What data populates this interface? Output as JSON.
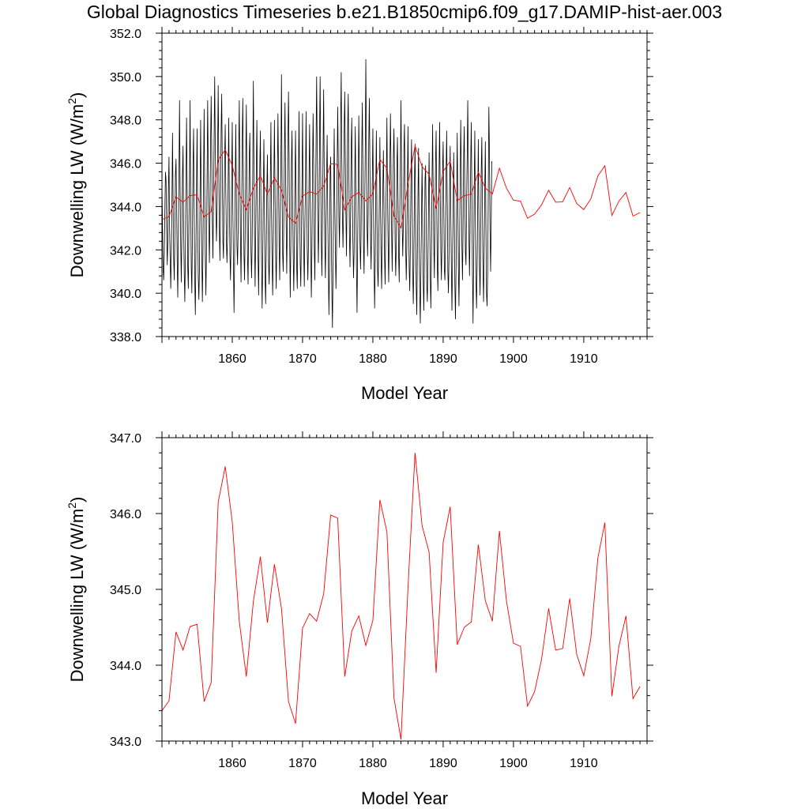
{
  "figure_title": "Global Diagnostics Timeseries b.e21.B1850cmip6.f09_g17.DAMIP-hist-aer.003",
  "chart_data": [
    {
      "type": "line",
      "title": "Global Diagnostics Timeseries b.e21.B1850cmip6.f09_g17.DAMIP-hist-aer.003",
      "xlabel": "Model Year",
      "ylabel": "Downwelling LW (W/m",
      "ylabel_sup": "2",
      "ylabel_close": ")",
      "xlim": [
        1850,
        1919
      ],
      "ylim": [
        338.0,
        352.0
      ],
      "x_ticks": [
        "1860",
        "1870",
        "1880",
        "1890",
        "1900",
        "1910"
      ],
      "x_tick_values": [
        1860,
        1870,
        1880,
        1890,
        1900,
        1910
      ],
      "y_ticks": [
        "338.0",
        "340.0",
        "342.0",
        "344.0",
        "346.0",
        "348.0",
        "350.0",
        "352.0"
      ],
      "y_tick_values": [
        338,
        340,
        342,
        344,
        346,
        348,
        350,
        352
      ],
      "series": [
        {
          "kind": "monthly",
          "color": "#000000",
          "x_start": 1850,
          "x_step": 0.08333,
          "values": [
            345.0,
            343.2,
            341.1,
            340.6,
            341.8,
            343.9,
            345.6,
            345.2,
            343.0,
            341.3,
            342.4,
            344.8,
            346.3,
            343.0,
            341.6,
            340.2,
            341.9,
            344.0,
            347.4,
            344.3,
            341.6,
            340.6,
            342.6,
            345.5,
            346.2,
            344.1,
            341.5,
            339.8,
            342.6,
            345.3,
            348.9,
            344.9,
            342.3,
            340.5,
            342.7,
            345.4,
            346.8,
            343.1,
            341.0,
            339.6,
            341.7,
            345.1,
            348.1,
            344.8,
            341.2,
            340.2,
            343.0,
            345.2,
            348.9,
            344.3,
            341.2,
            340.0,
            342.8,
            345.9,
            347.6,
            343.7,
            340.6,
            339.0,
            341.8,
            345.1,
            347.6,
            343.3,
            340.7,
            339.7,
            341.2,
            344.5,
            348.0,
            344.6,
            341.7,
            339.6,
            341.8,
            345.6,
            348.5,
            344.6,
            341.7,
            339.9,
            342.0,
            345.3,
            348.9,
            345.9,
            343.0,
            341.4,
            343.8,
            347.0,
            349.1,
            346.5,
            343.3,
            341.6,
            344.1,
            347.1,
            350.0,
            346.8,
            344.1,
            342.4,
            343.7,
            346.6,
            349.6,
            346.1,
            342.9,
            341.5,
            344.2,
            347.5,
            349.2,
            345.8,
            342.4,
            341.6,
            343.9,
            346.2,
            347.8,
            344.7,
            342.4,
            341.4,
            342.7,
            345.2,
            348.1,
            344.3,
            341.8,
            340.6,
            342.5,
            345.4,
            347.9,
            343.9,
            341.4,
            339.1,
            341.6,
            344.8,
            347.8,
            344.5,
            342.2,
            341.3,
            342.8,
            346.4,
            348.9,
            345.3,
            342.4,
            340.5,
            343.6,
            347.0,
            349.0,
            345.1,
            341.8,
            340.6,
            342.7,
            345.9,
            348.7,
            345.2,
            341.8,
            340.4,
            343.3,
            346.3,
            347.4,
            344.4,
            341.9,
            340.7,
            342.4,
            345.8,
            349.8,
            346.1,
            342.6,
            340.3,
            342.6,
            345.6,
            348.0,
            344.5,
            341.7,
            339.9,
            342.9,
            345.8,
            347.5,
            344.0,
            341.5,
            339.3,
            341.5,
            344.7,
            347.1,
            343.8,
            340.7,
            339.5,
            342.0,
            344.7,
            346.4,
            343.7,
            341.4,
            340.4,
            342.1,
            345.2,
            347.9,
            343.9,
            341.4,
            339.9,
            342.4,
            345.3,
            348.0,
            344.6,
            341.9,
            340.2,
            342.1,
            345.3,
            348.3,
            345.5,
            342.1,
            340.6,
            343.3,
            346.0,
            350.1,
            345.4,
            341.8,
            341.0,
            343.5,
            346.4,
            348.8,
            345.5,
            343.2,
            340.9,
            343.3,
            347.0,
            349.3,
            346.4,
            342.4,
            339.8,
            342.3,
            346.0,
            347.5,
            344.4,
            341.8,
            340.1,
            342.0,
            345.1,
            347.5,
            344.1,
            341.2,
            340.2,
            342.9,
            345.4,
            348.4,
            344.5,
            341.4,
            340.3,
            342.6,
            345.0,
            348.3,
            344.0,
            341.9,
            340.3,
            343.1,
            345.1,
            348.4,
            344.7,
            342.0,
            340.6,
            342.1,
            345.2,
            347.8,
            344.4,
            342.0,
            339.8,
            342.0,
            345.7,
            348.3,
            345.8,
            342.2,
            340.6,
            343.7,
            346.8,
            350.0,
            346.8,
            343.6,
            341.4,
            343.3,
            347.4,
            350.0,
            345.7,
            342.4,
            340.8,
            343.3,
            346.5,
            349.4,
            345.6,
            342.3,
            340.7,
            343.1,
            345.4,
            347.3,
            343.7,
            341.4,
            339.0,
            341.2,
            345.5,
            346.3,
            342.9,
            340.2,
            338.4,
            340.9,
            344.2,
            347.6,
            344.2,
            342.1,
            340.2,
            342.0,
            345.7,
            348.6,
            346.0,
            343.6,
            342.1,
            344.3,
            347.8,
            350.2,
            346.2,
            343.6,
            342.1,
            343.8,
            347.4,
            349.3,
            346.3,
            343.6,
            341.7,
            344.9,
            347.6,
            349.2,
            345.6,
            342.8,
            341.2,
            343.7,
            346.7,
            348.1,
            344.3,
            342.3,
            340.7,
            341.9,
            345.1,
            347.7,
            344.6,
            341.3,
            339.1,
            342.0,
            344.7,
            348.2,
            345.4,
            342.4,
            341.1,
            342.9,
            346.5,
            348.8,
            345.8,
            342.3,
            340.9,
            343.9,
            346.6,
            350.8,
            346.8,
            343.2,
            341.7,
            343.6,
            347.0,
            349.0,
            345.8,
            342.6,
            341.1,
            343.2,
            345.2,
            347.6,
            344.2,
            341.4,
            339.3,
            341.3,
            344.9,
            347.5,
            343.4,
            341.1,
            340.3,
            342.0,
            344.2,
            347.2,
            344.2,
            341.6,
            340.2,
            342.6,
            344.8,
            346.6,
            344.1,
            341.6,
            340.4,
            343.4,
            345.3,
            348.1,
            344.6,
            342.4,
            340.5,
            342.6,
            345.7,
            348.3,
            345.9,
            342.9,
            341.0,
            343.5,
            346.2,
            347.6,
            345.5,
            342.4,
            340.8,
            342.1,
            345.8,
            347.2,
            344.3,
            341.7,
            340.5,
            343.7,
            346.0,
            348.9,
            345.5,
            343.3,
            341.7,
            343.0,
            346.6,
            347.8,
            344.8,
            342.2,
            340.6,
            342.2,
            345.3,
            347.7,
            343.8,
            341.2,
            340.1,
            342.1,
            345.1,
            347.1,
            344.4,
            341.1,
            339.5,
            341.3,
            345.1,
            346.9,
            343.1,
            340.3,
            339.0,
            341.8,
            344.5,
            346.7,
            342.9,
            340.1,
            338.6,
            341.0,
            343.5,
            346.0,
            343.4,
            340.6,
            339.2,
            341.5,
            345.2,
            345.9,
            343.6,
            340.4,
            339.6,
            341.3,
            344.1,
            346.5,
            343.7,
            340.8,
            339.3,
            341.6,
            345.2,
            347.8,
            344.6,
            342.3,
            340.7,
            343.5,
            346.0,
            347.5,
            344.1,
            341.2,
            340.1,
            342.9,
            345.6,
            347.9,
            344.6,
            342.0,
            340.6,
            342.3,
            345.7,
            347.0,
            344.1,
            341.1,
            340.6,
            342.4,
            345.6,
            347.5,
            344.2,
            341.0,
            340.0,
            341.7,
            344.8,
            346.8,
            343.7,
            341.2,
            339.2,
            341.4,
            343.8,
            346.5,
            343.8,
            340.4,
            338.8,
            341.1,
            344.1,
            347.4,
            344.3,
            341.2,
            339.4,
            342.0,
            345.1,
            348.0,
            345.6,
            342.2,
            340.6,
            342.9,
            346.3,
            347.7,
            344.5,
            341.9,
            341.3,
            344.2,
            346.3,
            348.9,
            345.8,
            342.5,
            340.8,
            343.1,
            346.0,
            347.9,
            344.7,
            341.1,
            338.6,
            341.4,
            344.9,
            347.5,
            343.5,
            340.6,
            339.3,
            341.2,
            344.2,
            347.1,
            343.5,
            341.3,
            339.9,
            342.3,
            345.7,
            347.2,
            344.0,
            341.1,
            339.6,
            341.9,
            344.7,
            347.0,
            343.2,
            340.0,
            339.4,
            341.0,
            344.5,
            348.6,
            346.6,
            343.0,
            341.0,
            343.1,
            346.1
          ]
        },
        {
          "kind": "annual",
          "color": "#ff0000",
          "x_start": 1850,
          "x_step": 1,
          "values": [
            343.4,
            343.53,
            344.44,
            344.2,
            344.51,
            344.54,
            343.52,
            343.77,
            346.15,
            346.62,
            345.89,
            344.58,
            343.85,
            344.84,
            345.43,
            344.56,
            345.33,
            344.75,
            343.52,
            343.23,
            344.49,
            344.68,
            344.58,
            344.94,
            345.98,
            345.94,
            343.85,
            344.45,
            344.65,
            344.26,
            344.59,
            346.18,
            345.76,
            343.57,
            343.02,
            345.03,
            346.8,
            345.84,
            345.49,
            343.9,
            345.62,
            346.09,
            344.27,
            344.5,
            344.57,
            345.59,
            344.85,
            344.58,
            345.77,
            344.85,
            344.29,
            344.25,
            343.46,
            343.65,
            344.08,
            344.75,
            344.2,
            344.22,
            344.88,
            344.14,
            343.86,
            344.35,
            345.41,
            345.88,
            343.59,
            344.25,
            344.65,
            343.56,
            343.72
          ]
        }
      ]
    },
    {
      "type": "line",
      "title": "",
      "xlabel": "Model Year",
      "ylabel": "Downwelling LW (W/m",
      "ylabel_sup": "2",
      "ylabel_close": ")",
      "xlim": [
        1850,
        1919
      ],
      "ylim": [
        343.0,
        347.0
      ],
      "x_ticks": [
        "1860",
        "1870",
        "1880",
        "1890",
        "1900",
        "1910"
      ],
      "x_tick_values": [
        1860,
        1870,
        1880,
        1890,
        1900,
        1910
      ],
      "y_ticks": [
        "343.0",
        "344.0",
        "345.0",
        "346.0",
        "347.0"
      ],
      "y_tick_values": [
        343,
        344,
        345,
        346,
        347
      ],
      "series": [
        {
          "kind": "annual",
          "color": "#ff0000",
          "x_start": 1850,
          "x_step": 1,
          "values": [
            343.4,
            343.53,
            344.44,
            344.2,
            344.51,
            344.54,
            343.52,
            343.77,
            346.15,
            346.62,
            345.89,
            344.58,
            343.85,
            344.84,
            345.43,
            344.56,
            345.33,
            344.75,
            343.52,
            343.23,
            344.49,
            344.68,
            344.58,
            344.94,
            345.98,
            345.94,
            343.85,
            344.45,
            344.65,
            344.26,
            344.59,
            346.18,
            345.76,
            343.57,
            343.02,
            345.03,
            346.8,
            345.84,
            345.49,
            343.9,
            345.62,
            346.09,
            344.27,
            344.5,
            344.57,
            345.59,
            344.85,
            344.58,
            345.77,
            344.85,
            344.29,
            344.25,
            343.46,
            343.65,
            344.08,
            344.75,
            344.2,
            344.22,
            344.88,
            344.14,
            343.86,
            344.35,
            345.41,
            345.88,
            343.59,
            344.25,
            344.65,
            343.56,
            343.72
          ]
        }
      ]
    }
  ]
}
